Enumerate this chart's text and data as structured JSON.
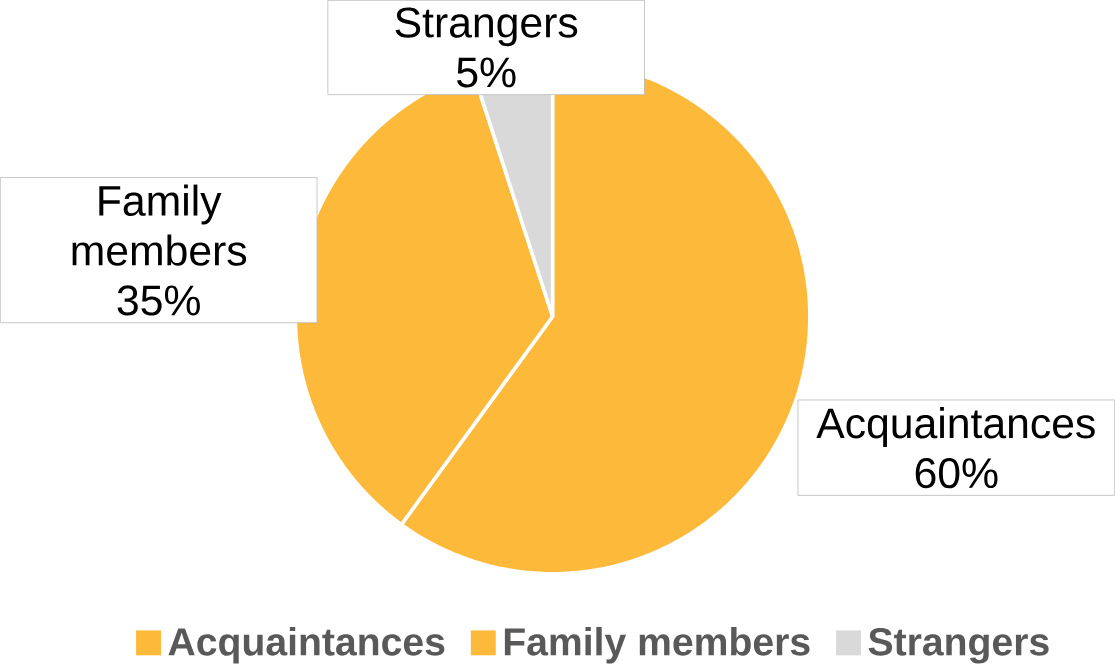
{
  "chart_data": {
    "type": "pie",
    "categories": [
      "Acquaintances",
      "Family members",
      "Strangers"
    ],
    "values": [
      60,
      35,
      5
    ],
    "colors": [
      "#fdb93a",
      "#fdb93a",
      "#d9d9d9"
    ],
    "value_labels": [
      "60%",
      "35%",
      "5%"
    ],
    "legend": "bottom"
  }
}
